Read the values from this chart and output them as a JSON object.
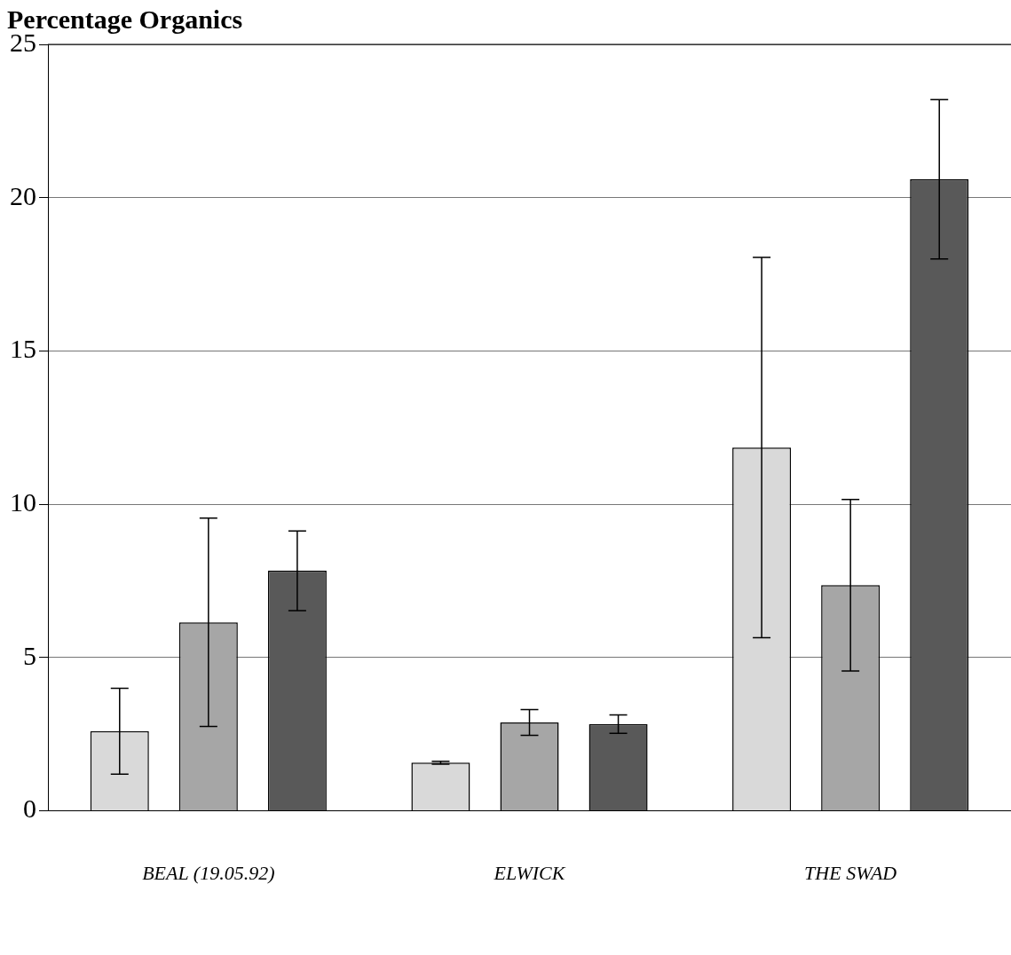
{
  "chart_data": {
    "type": "bar",
    "title": "Percentage Organics",
    "categories": [
      "BEAL (19.05.92)",
      "ELWICK",
      "THE SWAD"
    ],
    "series": [
      {
        "color": "#d9d9d9",
        "values": [
          2.6,
          1.57,
          11.85
        ],
        "errors": [
          1.4,
          0.05,
          6.2
        ]
      },
      {
        "color": "#a6a6a6",
        "values": [
          6.15,
          2.88,
          7.36
        ],
        "errors": [
          3.4,
          0.42,
          2.8
        ]
      },
      {
        "color": "#595959",
        "values": [
          7.83,
          2.83,
          20.6
        ],
        "errors": [
          1.3,
          0.3,
          2.6
        ]
      }
    ],
    "ylim": [
      0,
      25
    ],
    "yticks": [
      0,
      5,
      10,
      15,
      20,
      25
    ],
    "grid": "y",
    "legend": false
  }
}
